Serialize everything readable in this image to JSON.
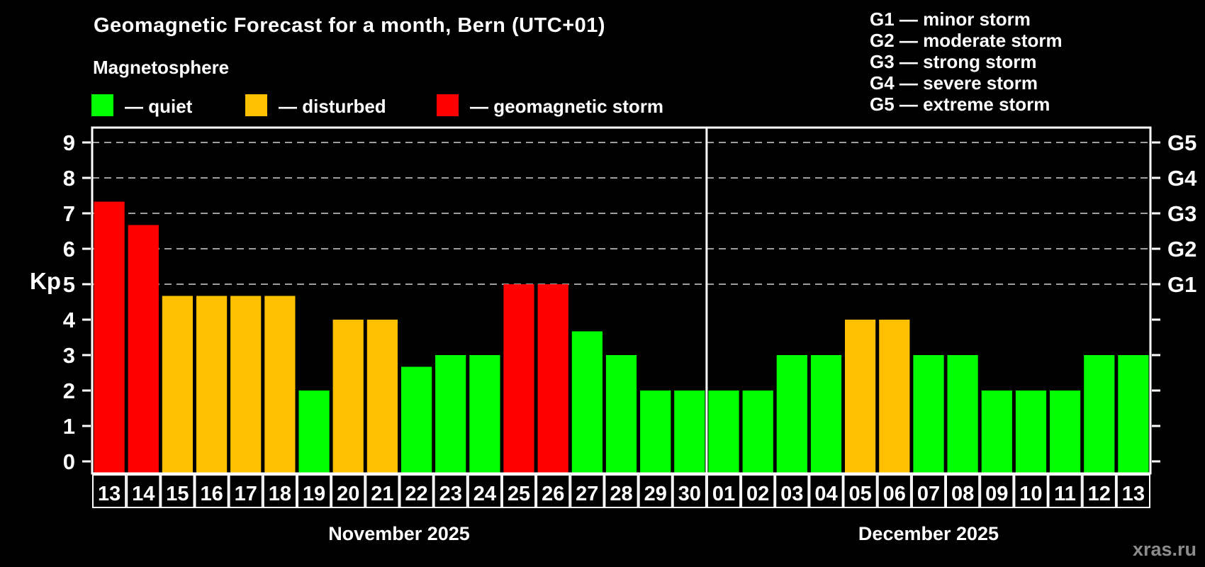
{
  "title": "Geomagnetic Forecast for a month, Bern (UTC+01)",
  "subtitle": "Magnetosphere",
  "legend": {
    "quiet": "— quiet",
    "disturbed": "— disturbed",
    "storm": "— geomagnetic storm"
  },
  "g_legend": [
    "G1 — minor storm",
    "G2 — moderate storm",
    "G3 — strong storm",
    "G4 — severe storm",
    "G5 — extreme storm"
  ],
  "watermark": "xras.ru",
  "colors": {
    "quiet": "#00ff00",
    "disturbed": "#ffc000",
    "storm": "#ff0000",
    "background": "#000000",
    "axis": "#ffffff",
    "grid": "#9e9e9e",
    "watermark": "#8c8c8c"
  },
  "chart_data": {
    "type": "bar",
    "ylabel": "Kp",
    "ylim": [
      0,
      9
    ],
    "y_ticks": [
      0,
      1,
      2,
      3,
      4,
      5,
      6,
      7,
      8,
      9
    ],
    "gridlines_at": [
      5,
      6,
      7,
      8,
      9
    ],
    "grid_style": "dashed horizontal lines at storm levels only",
    "right_axis": [
      {
        "kp": 5,
        "label": "G1"
      },
      {
        "kp": 6,
        "label": "G2"
      },
      {
        "kp": 7,
        "label": "G3"
      },
      {
        "kp": 8,
        "label": "G4"
      },
      {
        "kp": 9,
        "label": "G5"
      }
    ],
    "months": [
      {
        "label": "November 2025",
        "days": [
          {
            "day": "13",
            "kp": 7.33,
            "status": "storm"
          },
          {
            "day": "14",
            "kp": 6.67,
            "status": "storm"
          },
          {
            "day": "15",
            "kp": 4.67,
            "status": "disturbed"
          },
          {
            "day": "16",
            "kp": 4.67,
            "status": "disturbed"
          },
          {
            "day": "17",
            "kp": 4.67,
            "status": "disturbed"
          },
          {
            "day": "18",
            "kp": 4.67,
            "status": "disturbed"
          },
          {
            "day": "19",
            "kp": 2,
            "status": "quiet"
          },
          {
            "day": "20",
            "kp": 4,
            "status": "disturbed"
          },
          {
            "day": "21",
            "kp": 4,
            "status": "disturbed"
          },
          {
            "day": "22",
            "kp": 2.67,
            "status": "quiet"
          },
          {
            "day": "23",
            "kp": 3,
            "status": "quiet"
          },
          {
            "day": "24",
            "kp": 3,
            "status": "quiet"
          },
          {
            "day": "25",
            "kp": 5,
            "status": "storm"
          },
          {
            "day": "26",
            "kp": 5,
            "status": "storm"
          },
          {
            "day": "27",
            "kp": 3.67,
            "status": "quiet"
          },
          {
            "day": "28",
            "kp": 3,
            "status": "quiet"
          },
          {
            "day": "29",
            "kp": 2,
            "status": "quiet"
          },
          {
            "day": "30",
            "kp": 2,
            "status": "quiet"
          }
        ]
      },
      {
        "label": "December 2025",
        "days": [
          {
            "day": "01",
            "kp": 2,
            "status": "quiet"
          },
          {
            "day": "02",
            "kp": 2,
            "status": "quiet"
          },
          {
            "day": "03",
            "kp": 3,
            "status": "quiet"
          },
          {
            "day": "04",
            "kp": 3,
            "status": "quiet"
          },
          {
            "day": "05",
            "kp": 4,
            "status": "disturbed"
          },
          {
            "day": "06",
            "kp": 4,
            "status": "disturbed"
          },
          {
            "day": "07",
            "kp": 3,
            "status": "quiet"
          },
          {
            "day": "08",
            "kp": 3,
            "status": "quiet"
          },
          {
            "day": "09",
            "kp": 2,
            "status": "quiet"
          },
          {
            "day": "10",
            "kp": 2,
            "status": "quiet"
          },
          {
            "day": "11",
            "kp": 2,
            "status": "quiet"
          },
          {
            "day": "12",
            "kp": 3,
            "status": "quiet"
          },
          {
            "day": "13",
            "kp": 3,
            "status": "quiet"
          }
        ]
      }
    ]
  }
}
